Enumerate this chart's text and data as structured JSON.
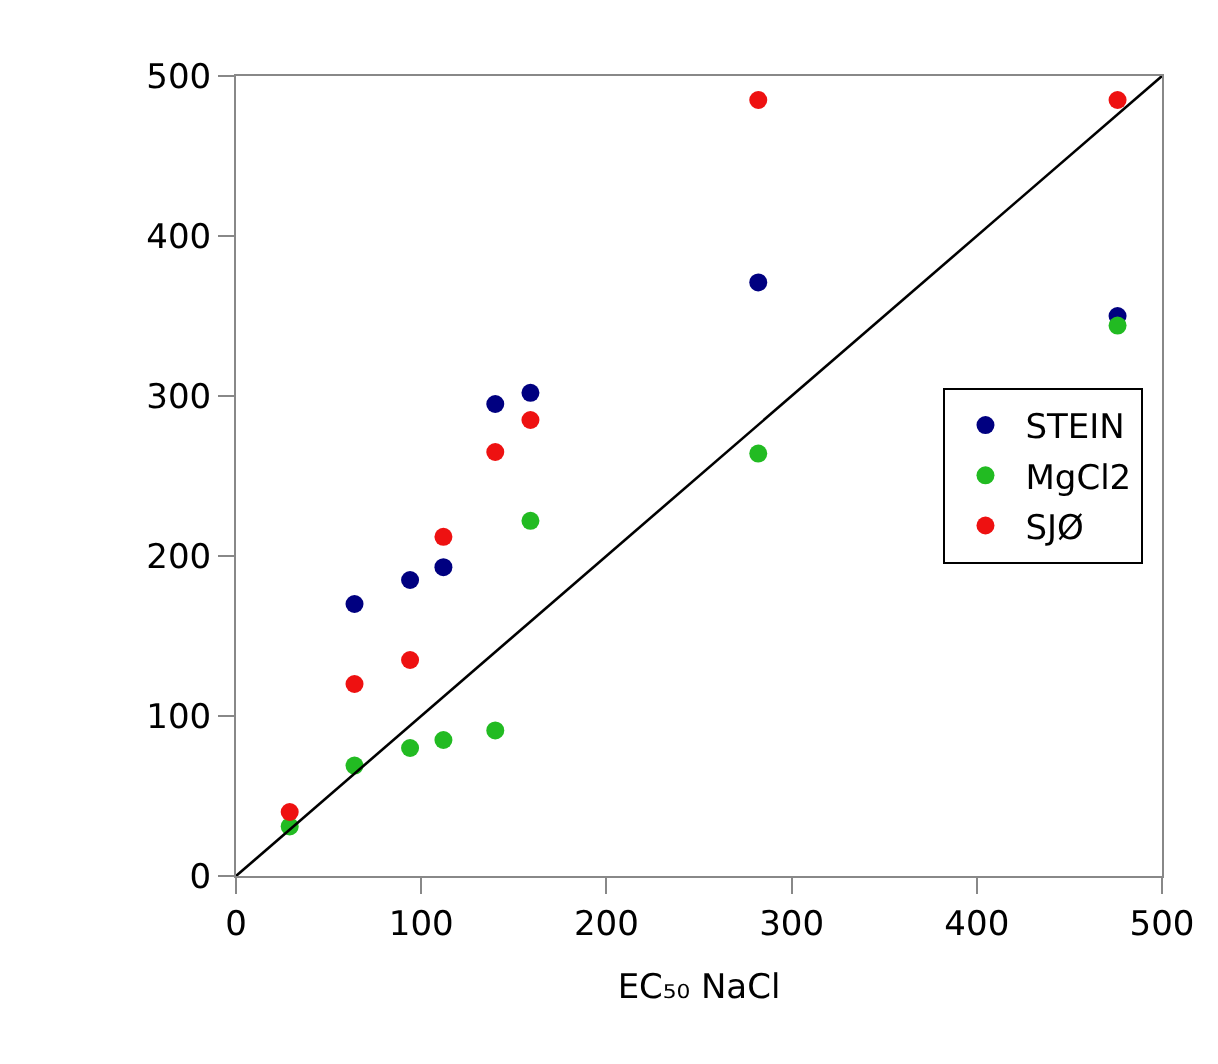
{
  "chart_data": {
    "type": "scatter",
    "xlabel": "EC₅₀ NaCl",
    "xlim": [
      0,
      500
    ],
    "xticks": [
      0,
      100,
      200,
      300,
      400,
      500
    ],
    "ylim": [
      0,
      500
    ],
    "yticks": [
      0,
      100,
      200,
      300,
      400,
      500
    ],
    "legend": "right",
    "marker": "circle",
    "series": [
      {
        "name": "STEIN",
        "color": "#000080",
        "x": [
          64,
          94,
          112,
          140,
          159,
          282,
          476
        ],
        "values": [
          170,
          185,
          193,
          295,
          302,
          371,
          350
        ]
      },
      {
        "name": "MgCl2",
        "color": "#22bb22",
        "x": [
          29,
          64,
          94,
          112,
          140,
          159,
          282,
          476
        ],
        "values": [
          31,
          69,
          80,
          85,
          91,
          222,
          264,
          344
        ]
      },
      {
        "name": "SJØ",
        "color": "#ee1111",
        "x": [
          29,
          64,
          94,
          112,
          140,
          159,
          282,
          476
        ],
        "values": [
          40,
          120,
          135,
          212,
          265,
          285,
          485,
          485
        ]
      },
      {
        "type": "line",
        "marker": "none",
        "color": "#000000",
        "x": [
          0,
          500
        ],
        "values": [
          0,
          500
        ]
      }
    ]
  }
}
